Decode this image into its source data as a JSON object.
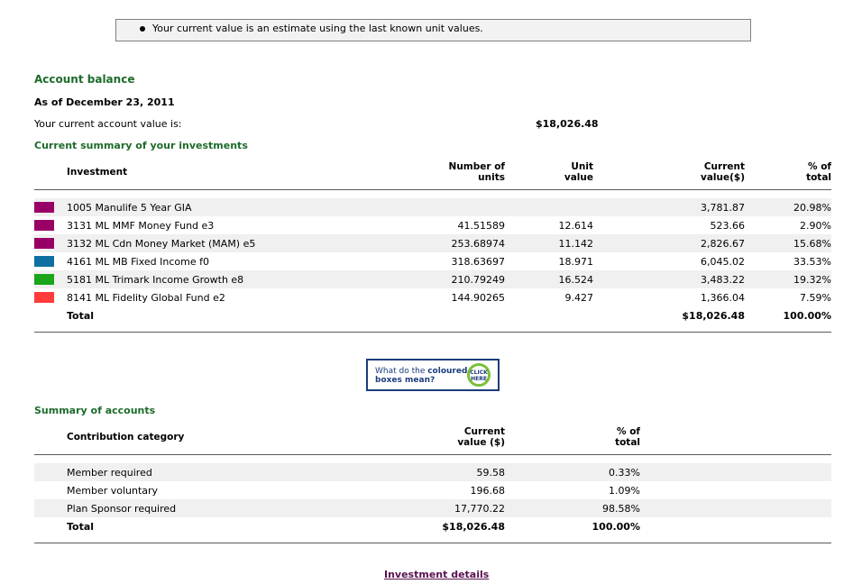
{
  "notice": {
    "text": "Your current value is an estimate using the last known unit values."
  },
  "account": {
    "heading": "Account balance",
    "as_of": "As of December 23, 2011",
    "value_label": "Your current account value is:",
    "value": "$18,026.48"
  },
  "investments": {
    "heading": "Current summary of your investments",
    "headers": {
      "investment": "Investment",
      "units_1": "Number of",
      "units_2": "units",
      "unit_value_1": "Unit",
      "unit_value_2": "value",
      "current_1": "Current",
      "current_2": "value($)",
      "pct_1": "% of",
      "pct_2": "total"
    },
    "rows": [
      {
        "name": "1005 Manulife 5 Year GIA",
        "units": "",
        "unit_value": "",
        "current": "3,781.87",
        "pct": "20.98%",
        "color": "#990066"
      },
      {
        "name": "3131 ML MMF Money Fund e3",
        "units": "41.51589",
        "unit_value": "12.614",
        "current": "523.66",
        "pct": "2.90%",
        "color": "#990066"
      },
      {
        "name": "3132 ML Cdn Money Market (MAM) e5",
        "units": "253.68974",
        "unit_value": "11.142",
        "current": "2,826.67",
        "pct": "15.68%",
        "color": "#990066"
      },
      {
        "name": "4161 ML MB Fixed Income f0",
        "units": "318.63697",
        "unit_value": "18.971",
        "current": "6,045.02",
        "pct": "33.53%",
        "color": "#0f6fa0"
      },
      {
        "name": "5181 ML Trimark Income Growth e8",
        "units": "210.79249",
        "unit_value": "16.524",
        "current": "3,483.22",
        "pct": "19.32%",
        "color": "#1aa51a"
      },
      {
        "name": "8141 ML Fidelity Global Fund e2",
        "units": "144.90265",
        "unit_value": "9.427",
        "current": "1,366.04",
        "pct": "7.59%",
        "color": "#ff3b3b"
      }
    ],
    "total": {
      "label": "Total",
      "current": "$18,026.48",
      "pct": "100.00%"
    }
  },
  "cta": {
    "line1a": "What do the ",
    "line1b": "coloured",
    "line2": "boxes mean?",
    "badge1": "CLICK",
    "badge2": "HERE"
  },
  "accounts": {
    "heading": "Summary of accounts",
    "headers": {
      "category": "Contribution category",
      "current_1": "Current",
      "current_2": "value ($)",
      "pct_1": "% of",
      "pct_2": "total"
    },
    "rows": [
      {
        "name": "Member required",
        "current": "59.58",
        "pct": "0.33%"
      },
      {
        "name": "Member voluntary",
        "current": "196.68",
        "pct": "1.09%"
      },
      {
        "name": "Plan Sponsor required",
        "current": "17,770.22",
        "pct": "98.58%"
      }
    ],
    "total": {
      "label": "Total",
      "current": "$18,026.48",
      "pct": "100.00%"
    }
  },
  "links": {
    "investment_details": "Investment details"
  }
}
